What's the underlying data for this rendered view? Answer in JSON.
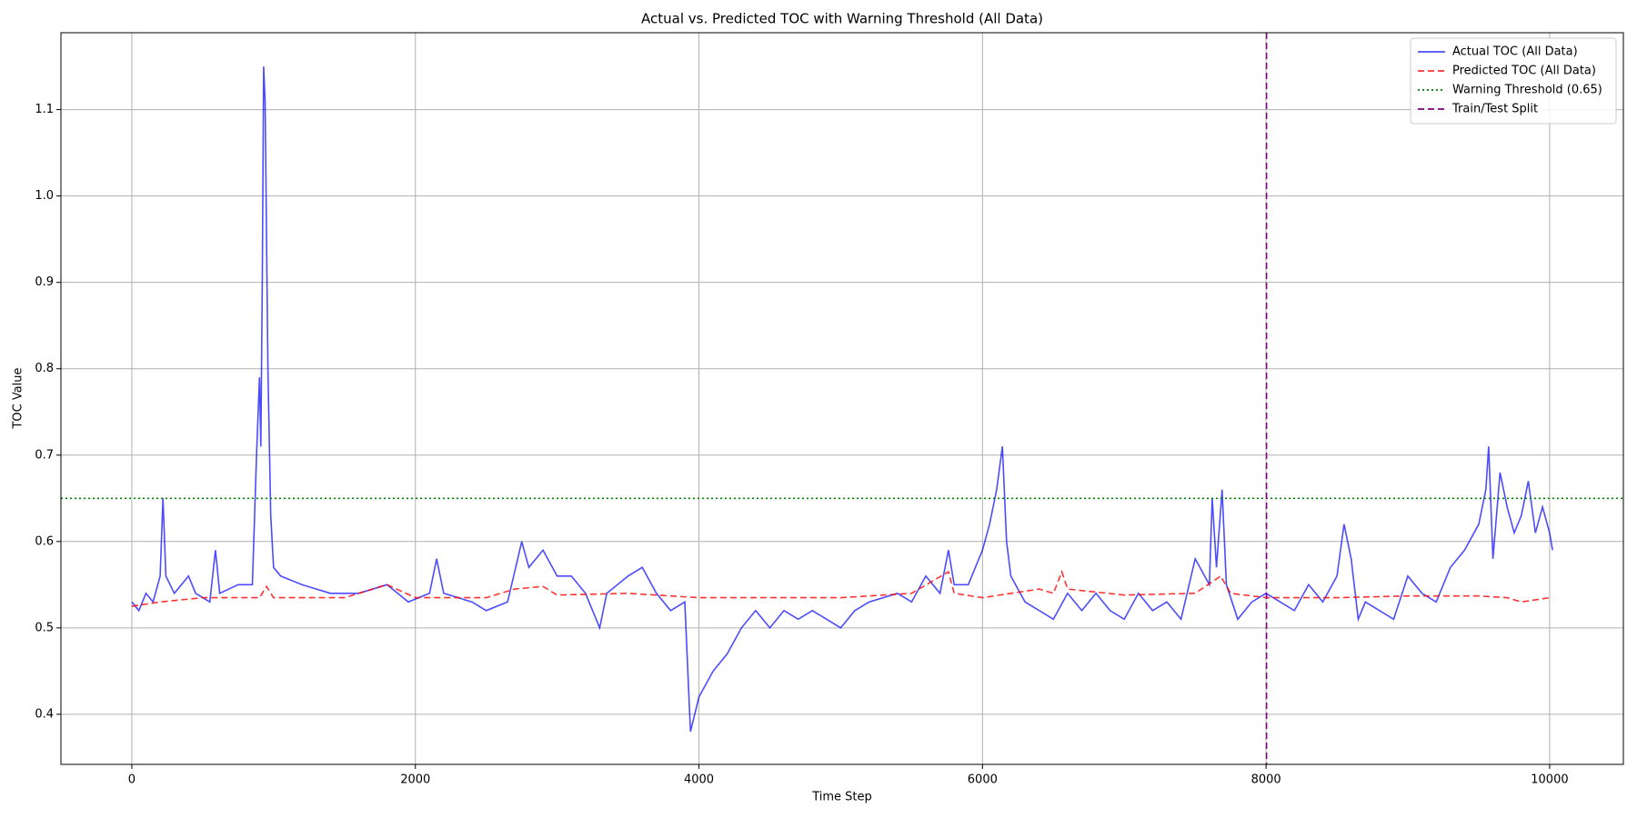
{
  "chart_data": {
    "type": "line",
    "title": "Actual vs. Predicted TOC with Warning Threshold (All Data)",
    "x_label": "Time Step",
    "y_label": "TOC Value",
    "xlim": [
      -500,
      10520
    ],
    "ylim": [
      0.342,
      1.189
    ],
    "xticks": [
      0,
      2000,
      4000,
      6000,
      8000,
      10000
    ],
    "yticks": [
      0.4,
      0.5,
      0.6,
      0.7,
      0.8,
      0.9,
      {
        "value": 1,
        "label": "1.0"
      },
      1.1
    ],
    "grid": true,
    "legend_position": "upper right",
    "series": [
      {
        "name": "Actual TOC (All Data)",
        "color": "#0000ff",
        "opacity": 0.7,
        "style": "solid",
        "x": [
          0,
          50,
          100,
          150,
          200,
          220,
          240,
          300,
          400,
          450,
          550,
          590,
          620,
          750,
          850,
          880,
          900,
          910,
          920,
          930,
          940,
          960,
          980,
          1000,
          1050,
          1200,
          1400,
          1600,
          1800,
          1950,
          2100,
          2150,
          2200,
          2400,
          2500,
          2650,
          2750,
          2800,
          2900,
          3000,
          3100,
          3200,
          3300,
          3350,
          3500,
          3600,
          3700,
          3800,
          3900,
          3940,
          3970,
          4000,
          4100,
          4200,
          4300,
          4400,
          4500,
          4600,
          4700,
          4800,
          4900,
          5000,
          5100,
          5200,
          5400,
          5500,
          5600,
          5700,
          5760,
          5800,
          5900,
          6000,
          6050,
          6100,
          6140,
          6170,
          6200,
          6300,
          6400,
          6500,
          6600,
          6700,
          6800,
          6900,
          7000,
          7100,
          7200,
          7300,
          7400,
          7500,
          7600,
          7620,
          7650,
          7690,
          7720,
          7800,
          7900,
          8000,
          8100,
          8200,
          8300,
          8400,
          8500,
          8550,
          8600,
          8650,
          8700,
          8800,
          8900,
          9000,
          9100,
          9200,
          9300,
          9400,
          9500,
          9550,
          9570,
          9600,
          9650,
          9700,
          9750,
          9800,
          9850,
          9900,
          9950,
          10000,
          10020
        ],
        "values": [
          0.53,
          0.52,
          0.54,
          0.53,
          0.56,
          0.65,
          0.56,
          0.54,
          0.56,
          0.54,
          0.53,
          0.59,
          0.54,
          0.55,
          0.55,
          0.7,
          0.79,
          0.71,
          0.9,
          1.15,
          1.11,
          0.8,
          0.63,
          0.57,
          0.56,
          0.55,
          0.54,
          0.54,
          0.55,
          0.53,
          0.54,
          0.58,
          0.54,
          0.53,
          0.52,
          0.53,
          0.6,
          0.57,
          0.59,
          0.56,
          0.56,
          0.54,
          0.5,
          0.54,
          0.56,
          0.57,
          0.54,
          0.52,
          0.53,
          0.38,
          0.4,
          0.42,
          0.45,
          0.47,
          0.5,
          0.52,
          0.5,
          0.52,
          0.51,
          0.52,
          0.51,
          0.5,
          0.52,
          0.53,
          0.54,
          0.53,
          0.56,
          0.54,
          0.59,
          0.55,
          0.55,
          0.59,
          0.62,
          0.66,
          0.71,
          0.6,
          0.56,
          0.53,
          0.52,
          0.51,
          0.54,
          0.52,
          0.54,
          0.52,
          0.51,
          0.54,
          0.52,
          0.53,
          0.51,
          0.58,
          0.55,
          0.65,
          0.57,
          0.66,
          0.55,
          0.51,
          0.53,
          0.54,
          0.53,
          0.52,
          0.55,
          0.53,
          0.56,
          0.62,
          0.58,
          0.51,
          0.53,
          0.52,
          0.51,
          0.56,
          0.54,
          0.53,
          0.57,
          0.59,
          0.62,
          0.66,
          0.71,
          0.58,
          0.68,
          0.64,
          0.61,
          0.63,
          0.67,
          0.61,
          0.64,
          0.61,
          0.59
        ]
      },
      {
        "name": "Predicted TOC (All Data)",
        "color": "#ff0000",
        "opacity": 0.8,
        "style": "dashed",
        "x": [
          0,
          200,
          500,
          900,
          950,
          1000,
          1500,
          1800,
          2000,
          2500,
          2700,
          2900,
          3000,
          3500,
          4000,
          5000,
          5500,
          5760,
          5800,
          6000,
          6400,
          6500,
          6560,
          6600,
          7000,
          7500,
          7680,
          7750,
          8000,
          8500,
          9000,
          9500,
          9700,
          9800,
          10000
        ],
        "values": [
          0.525,
          0.53,
          0.535,
          0.535,
          0.548,
          0.535,
          0.535,
          0.55,
          0.535,
          0.535,
          0.545,
          0.548,
          0.538,
          0.54,
          0.535,
          0.535,
          0.54,
          0.565,
          0.54,
          0.535,
          0.545,
          0.54,
          0.565,
          0.545,
          0.538,
          0.54,
          0.56,
          0.54,
          0.535,
          0.535,
          0.537,
          0.537,
          0.535,
          0.53,
          0.535
        ]
      }
    ],
    "hlines": [
      {
        "name": "Warning Threshold (0.65)",
        "color": "#008000",
        "style": "dotted",
        "y": 0.65
      }
    ],
    "vlines": [
      {
        "name": "Train/Test Split",
        "color": "#800080",
        "style": "dashed",
        "x": 8003
      }
    ]
  }
}
